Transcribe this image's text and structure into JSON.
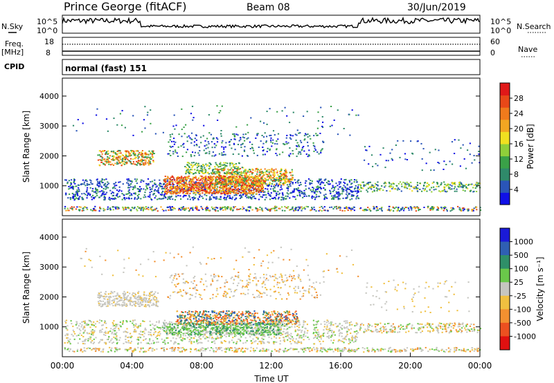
{
  "header": {
    "station": "Prince George (fitACF)",
    "beam": "Beam 08",
    "date": "30/Jun/2019"
  },
  "strip": {
    "nsky_label": "N.Sky",
    "nsearch_label": "N.Search",
    "freq_label_1": "Freq.",
    "freq_label_2": "[MHz]",
    "nave_label": "Nave",
    "cpid_label": "CPID",
    "mode": "normal (fast) 151",
    "noise_ticks_left": [
      "10^5",
      "10^0"
    ],
    "noise_ticks_right": [
      "10^5",
      "10^0"
    ],
    "freq_ticks": [
      "18",
      "8"
    ],
    "nave_ticks": [
      "60",
      "0"
    ]
  },
  "colors": {
    "power_scale": [
      "#1010e6",
      "#2a55b8",
      "#2f8a6a",
      "#3aa148",
      "#8fcf3a",
      "#f0e020",
      "#f2a622",
      "#f07a1c",
      "#e84818",
      "#e01818"
    ],
    "velocity_scale": [
      "#1a1ad8",
      "#2f5fb3",
      "#2f8f68",
      "#6ac84a",
      "#c6c6c0",
      "#f0c040",
      "#f39030",
      "#ec5020",
      "#e01010"
    ]
  },
  "chart_data": [
    {
      "type": "heatmap",
      "name": "power",
      "xlabel": "",
      "ylabel": "Slant Range [km]",
      "xlim": [
        "00:00",
        "24:00"
      ],
      "ylim": [
        0,
        4600
      ],
      "y_ticks": [
        1000,
        2000,
        3000,
        4000
      ],
      "colorbar": {
        "label": "Power [dB]",
        "ticks": [
          4,
          8,
          12,
          16,
          20,
          24,
          28
        ]
      }
    },
    {
      "type": "heatmap",
      "name": "velocity",
      "xlabel": "Time UT",
      "ylabel": "Slant Range [km]",
      "xlim": [
        "00:00",
        "24:00"
      ],
      "ylim": [
        0,
        4600
      ],
      "x_ticks": [
        "00:00",
        "04:00",
        "08:00",
        "12:00",
        "16:00",
        "20:00",
        "00:00"
      ],
      "y_ticks": [
        1000,
        2000,
        3000,
        4000
      ],
      "colorbar": {
        "label": "Velocity [m s⁻¹]",
        "ticks": [
          "1000",
          "500",
          "100",
          "25",
          "-25",
          "-100",
          "-500",
          "-1000"
        ]
      }
    }
  ]
}
